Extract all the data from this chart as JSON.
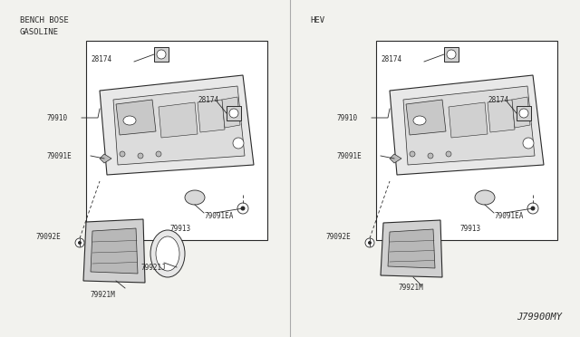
{
  "bg_color": "#f2f2ee",
  "line_color": "#2a2a2a",
  "text_color": "#2a2a2a",
  "title_left": "BENCH BOSE\nGASOLINE",
  "title_right": "HEV",
  "watermark": "J79900MY",
  "font_size_title": 6.5,
  "font_size_label": 5.5,
  "font_size_watermark": 7.5
}
